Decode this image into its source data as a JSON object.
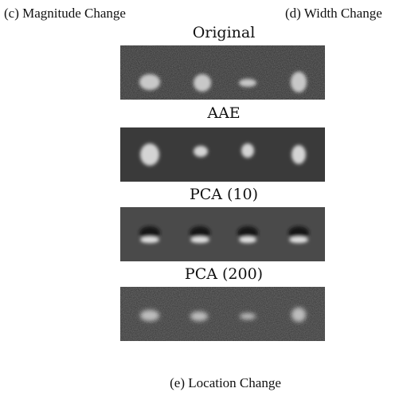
{
  "captions": {
    "c": "(c) Magnitude Change",
    "d": "(d) Width Change",
    "e": "(e) Location Change"
  },
  "panels": [
    {
      "label": "Original"
    },
    {
      "label": "AAE"
    },
    {
      "label": "PCA (10)"
    },
    {
      "label": "PCA (200)"
    }
  ]
}
